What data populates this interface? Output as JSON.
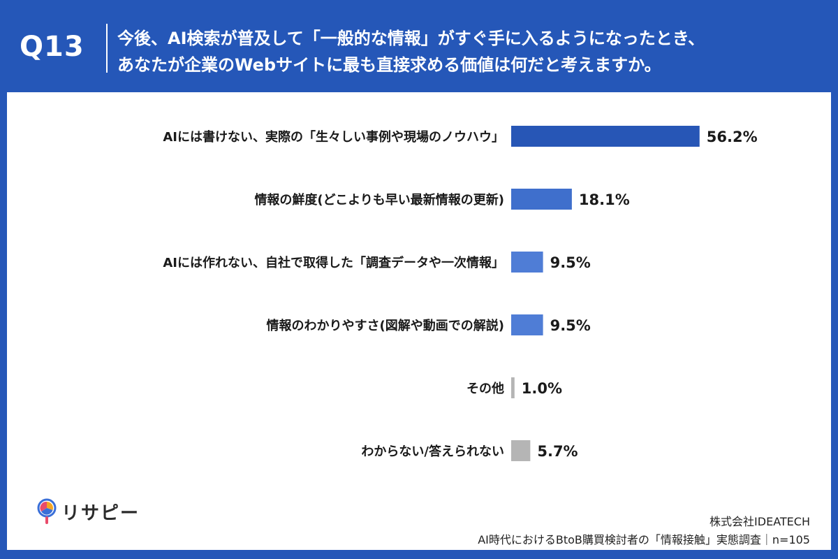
{
  "header": {
    "question_label": "Q13",
    "question_line1": "今後、AI検索が普及して「一般的な情報」がすぐ手に入るようになったとき、",
    "question_line2": "あなたが企業のWebサイトに最も直接求める価値は何だと考えますか。"
  },
  "brand": {
    "name": "リサピー",
    "icon": "pin-logo-icon",
    "logo_colors": [
      "#f5a623",
      "#3a6fd8",
      "#e94b6a"
    ]
  },
  "footer": {
    "company": "株式会社IDEATECH",
    "survey": "AI時代におけるBtoB購買検討者の「情報接触」実態調査｜n=105"
  },
  "colors": {
    "background": "#2557b8",
    "bar_top": "#2756b6",
    "bar_main": "#3f6fcc",
    "bar_other": "#b5b5b5"
  },
  "chart_data": {
    "type": "bar",
    "orientation": "horizontal",
    "categories": [
      "AIには書けない、実際の「生々しい事例や現場のノウハウ」",
      "情報の鮮度(どこよりも早い最新情報の更新)",
      "AIには作れない、自社で取得した「調査データや一次情報」",
      "情報のわかりやすさ(図解や動画での解説)",
      "その他",
      "わからない/答えられない"
    ],
    "values": [
      56.2,
      18.1,
      9.5,
      9.5,
      1.0,
      5.7
    ],
    "value_labels": [
      "56.2%",
      "18.1%",
      "9.5%",
      "9.5%",
      "1.0%",
      "5.7%"
    ],
    "bar_colors": [
      "#2756b6",
      "#3f6fcc",
      "#4f7dd6",
      "#4f7dd6",
      "#b5b5b5",
      "#b5b5b5"
    ],
    "unit": "%",
    "xlim": [
      0,
      100
    ],
    "grid": false,
    "legend": "none"
  }
}
